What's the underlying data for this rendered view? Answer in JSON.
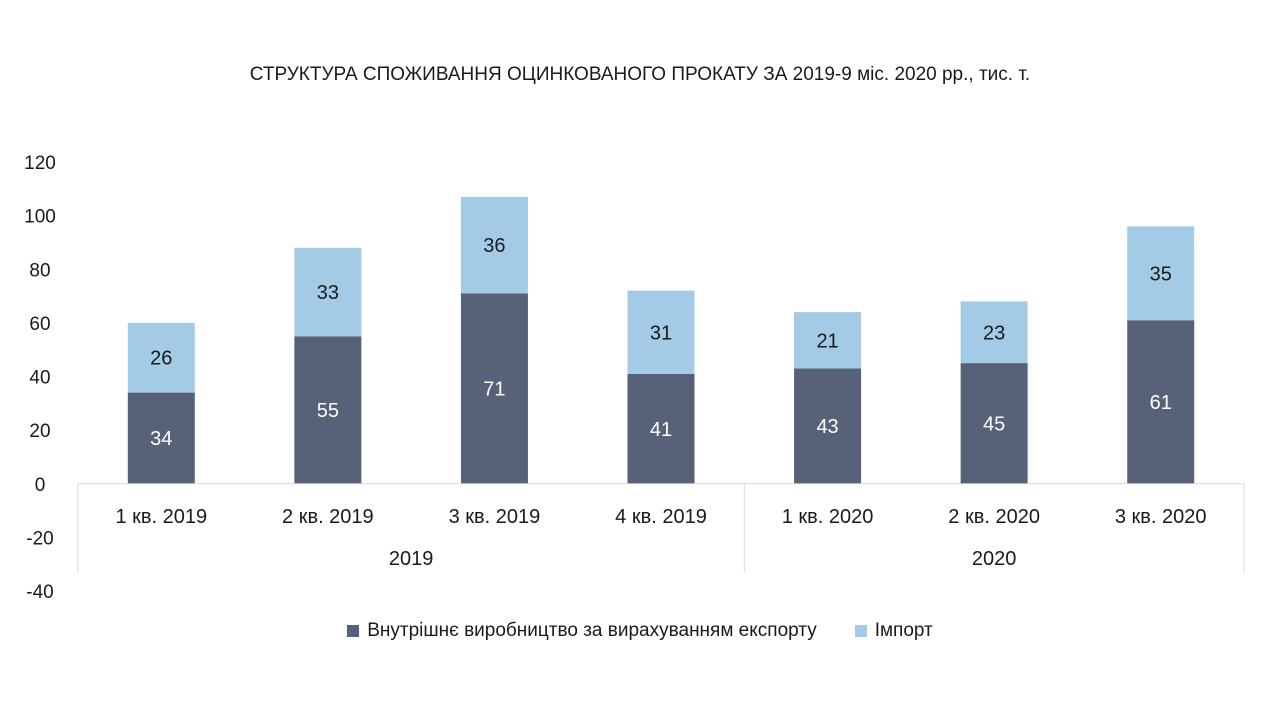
{
  "chart_data": {
    "type": "bar",
    "stacked": true,
    "title": "СТРУКТУРА СПОЖИВАННЯ ОЦИНКОВАНОГО ПРОКАТУ ЗА 2019-9 міс. 2020 рр., тис. т.",
    "categories": [
      "1 кв. 2019",
      "2 кв. 2019",
      "3 кв. 2019",
      "4 кв. 2019",
      "1 кв. 2020",
      "2 кв. 2020",
      "3 кв. 2020"
    ],
    "groups": [
      {
        "label": "2019",
        "count": 4
      },
      {
        "label": "2020",
        "count": 3
      }
    ],
    "series": [
      {
        "name": "Внутрішнє виробництво за вирахуванням експорту",
        "color": "#576278",
        "label_color": "#ffffff",
        "values": [
          34,
          55,
          71,
          41,
          43,
          45,
          61
        ]
      },
      {
        "name": "Імпорт",
        "color": "#a3cbe6",
        "label_color": "#1a1a1a",
        "values": [
          26,
          33,
          36,
          31,
          21,
          23,
          35
        ]
      }
    ],
    "yticks": [
      -40,
      -20,
      0,
      20,
      40,
      60,
      80,
      100,
      120
    ],
    "ylim": [
      -40,
      120
    ],
    "grid": false,
    "legend": "bottom"
  }
}
